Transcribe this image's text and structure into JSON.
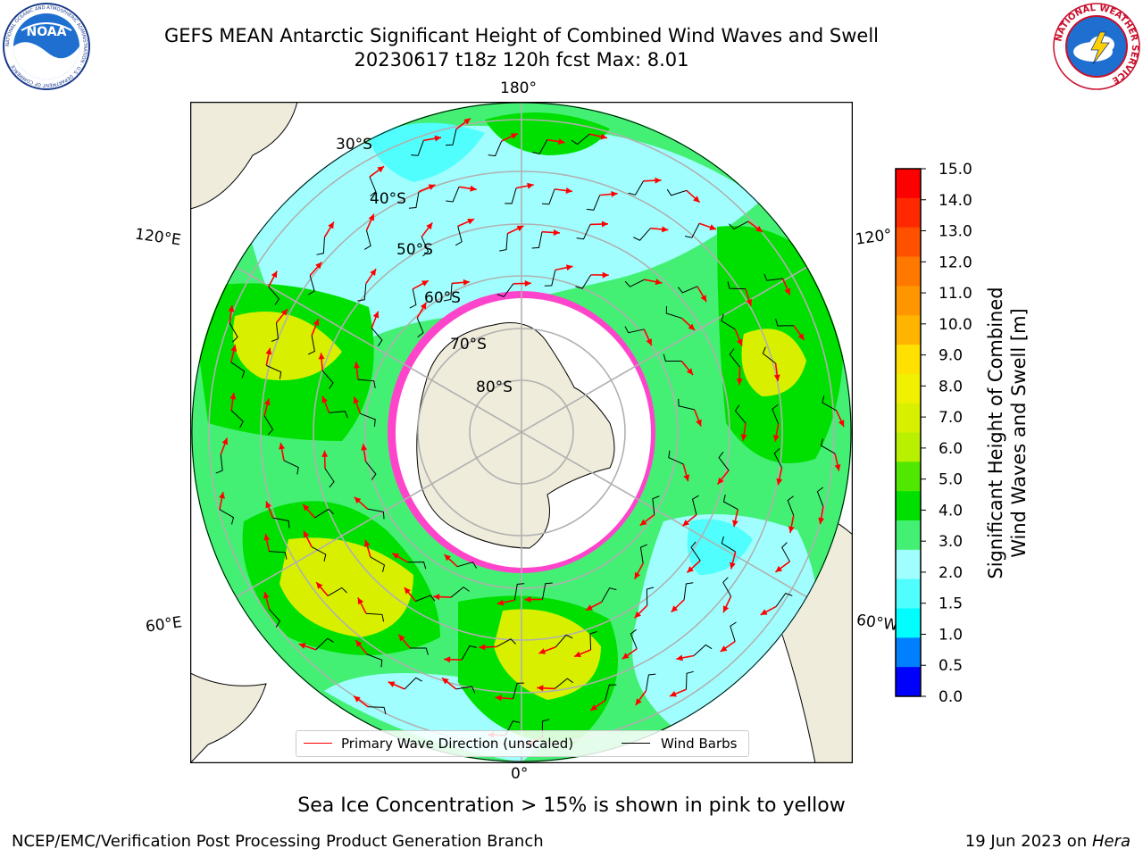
{
  "title": {
    "line1": "GEFS MEAN Antarctic Significant Height of Combined Wind Waves and Swell",
    "line2": "20230617 t18z 120h fcst   Max: 8.01"
  },
  "logos": {
    "left": {
      "text": "NOAA",
      "ring_text": "NATIONAL OCEANIC AND ATMOSPHERIC ADMINISTRATION · U.S. DEPARTMENT OF COMMERCE"
    },
    "right": {
      "ring_text": "NATIONAL WEATHER SERVICE"
    }
  },
  "map": {
    "longitude_labels": {
      "top": "180°",
      "bottom": "0°",
      "left_upper": "120°E",
      "left_lower": "60°E",
      "right_upper": "120°",
      "right_lower": "60°W"
    },
    "latitude_labels": [
      "30°S",
      "40°S",
      "50°S",
      "60°S",
      "70°S",
      "80°S"
    ],
    "legend": {
      "wave_label": "Primary Wave Direction (unscaled)",
      "wind_label": "Wind Barbs"
    },
    "colors": {
      "land": "#efecdc",
      "ocean_white": "#ffffff",
      "wave_arrow": "#ff0000",
      "wind_barb": "#000000",
      "ice": "#ff44cc"
    }
  },
  "colorbar": {
    "label_line1": "Significant Height of Combined",
    "label_line2": "Wind Waves and Swell [m]",
    "ticks": [
      "15.0",
      "14.0",
      "13.0",
      "12.0",
      "11.0",
      "10.0",
      "9.0",
      "8.0",
      "7.0",
      "6.0",
      "5.0",
      "4.0",
      "3.0",
      "2.0",
      "1.5",
      "1.0",
      "0.5",
      "0.0"
    ],
    "colors_top_to_bottom": [
      "#ff0000",
      "#ff2800",
      "#ff5000",
      "#ff7800",
      "#ff9600",
      "#ffb400",
      "#ffe000",
      "#f0f000",
      "#d8f000",
      "#b8f000",
      "#50e800",
      "#00e000",
      "#44f074",
      "#a0fffe",
      "#50fefe",
      "#00fefe",
      "#0080ff",
      "#0000ff"
    ]
  },
  "notes": {
    "sea_ice": "Sea Ice Concentration > 15% is shown in pink to yellow",
    "footer_left": "NCEP/EMC/Verification Post Processing Product Generation Branch",
    "footer_right_prefix": "19 Jun 2023 on ",
    "footer_right_machine": "Hera"
  }
}
